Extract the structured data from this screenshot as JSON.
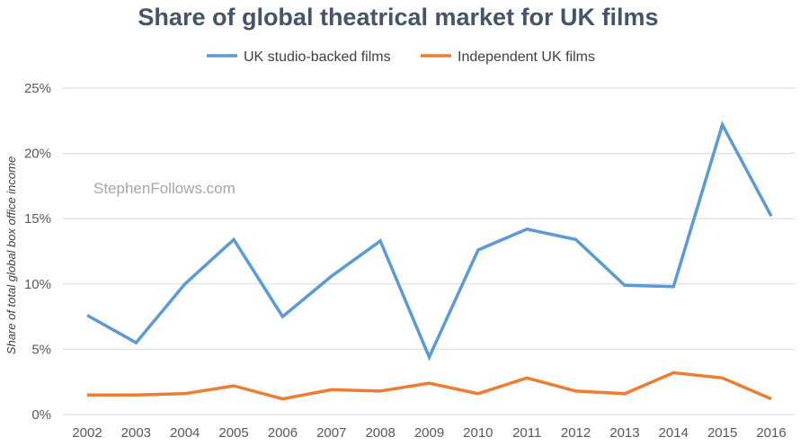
{
  "watermark": "StephenFollows.com",
  "colors": {
    "series1": "#5b9bd5",
    "series2": "#ed7d31"
  },
  "chart_data": {
    "type": "line",
    "title": "Share of global theatrical market for UK films",
    "xlabel": "",
    "ylabel": "Share of total global box office income",
    "categories": [
      "2002",
      "2003",
      "2004",
      "2005",
      "2006",
      "2007",
      "2008",
      "2009",
      "2010",
      "2011",
      "2012",
      "2013",
      "2014",
      "2015",
      "2016"
    ],
    "series": [
      {
        "name": "UK studio-backed films",
        "values": [
          7.6,
          5.5,
          10.0,
          13.4,
          7.5,
          10.6,
          13.3,
          4.4,
          12.6,
          14.2,
          13.4,
          9.9,
          9.8,
          22.2,
          15.2
        ]
      },
      {
        "name": "Independent UK films",
        "values": [
          1.5,
          1.5,
          1.6,
          2.2,
          1.2,
          1.9,
          1.8,
          2.4,
          1.6,
          2.8,
          1.8,
          1.6,
          3.2,
          2.8,
          1.2
        ]
      }
    ],
    "ylim": [
      0,
      25
    ],
    "yticks": [
      0,
      5,
      10,
      15,
      20,
      25
    ],
    "ytick_labels": [
      "0%",
      "5%",
      "10%",
      "15%",
      "20%",
      "25%"
    ],
    "legend": "top",
    "grid": true
  }
}
